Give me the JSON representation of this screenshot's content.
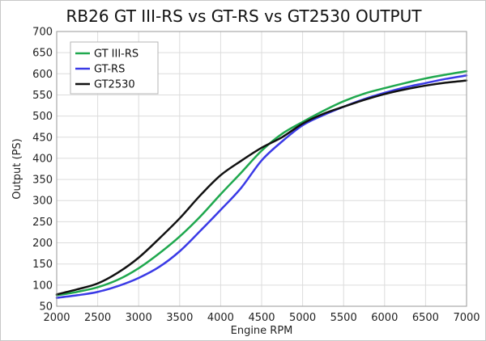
{
  "chart_data": {
    "type": "line",
    "title": "RB26 GT III-RS vs GT-RS vs GT2530 OUTPUT",
    "xlabel": "Engine RPM",
    "ylabel": "Output (PS)",
    "xlim": [
      2000,
      7000
    ],
    "ylim": [
      50,
      700
    ],
    "x_ticks": [
      "2000",
      "2500",
      "3000",
      "3500",
      "4000",
      "4500",
      "5000",
      "5500",
      "6000",
      "6500",
      "7000"
    ],
    "y_ticks": [
      "50",
      "100",
      "150",
      "200",
      "250",
      "300",
      "350",
      "400",
      "450",
      "500",
      "550",
      "600",
      "650",
      "700"
    ],
    "grid": true,
    "legend_position": "top-left",
    "series": [
      {
        "name": "GT III-RS",
        "color": "#1fa84e",
        "x": [
          2000,
          2250,
          2500,
          2750,
          3000,
          3250,
          3500,
          3750,
          4000,
          4250,
          4500,
          4750,
          5000,
          5250,
          5500,
          5750,
          6000,
          6250,
          6500,
          6750,
          7000
        ],
        "y": [
          76,
          84,
          95,
          113,
          140,
          175,
          215,
          262,
          315,
          366,
          418,
          458,
          486,
          512,
          535,
          553,
          566,
          578,
          589,
          598,
          606
        ]
      },
      {
        "name": "GT-RS",
        "color": "#3a3ae6",
        "x": [
          2000,
          2250,
          2500,
          2750,
          3000,
          3250,
          3500,
          3750,
          4000,
          4250,
          4500,
          4750,
          5000,
          5250,
          5500,
          5750,
          6000,
          6250,
          6500,
          6750,
          7000
        ],
        "y": [
          70,
          76,
          84,
          98,
          117,
          143,
          180,
          228,
          278,
          330,
          395,
          440,
          478,
          502,
          522,
          540,
          555,
          568,
          578,
          588,
          596
        ]
      },
      {
        "name": "GT2530",
        "color": "#111111",
        "x": [
          2000,
          2250,
          2500,
          2750,
          3000,
          3250,
          3500,
          3750,
          4000,
          4250,
          4500,
          4750,
          5000,
          5250,
          5500,
          5750,
          6000,
          6250,
          6500,
          6750,
          7000
        ],
        "y": [
          78,
          90,
          104,
          130,
          165,
          210,
          258,
          312,
          360,
          394,
          425,
          450,
          482,
          505,
          522,
          538,
          552,
          563,
          572,
          579,
          584
        ]
      }
    ]
  }
}
